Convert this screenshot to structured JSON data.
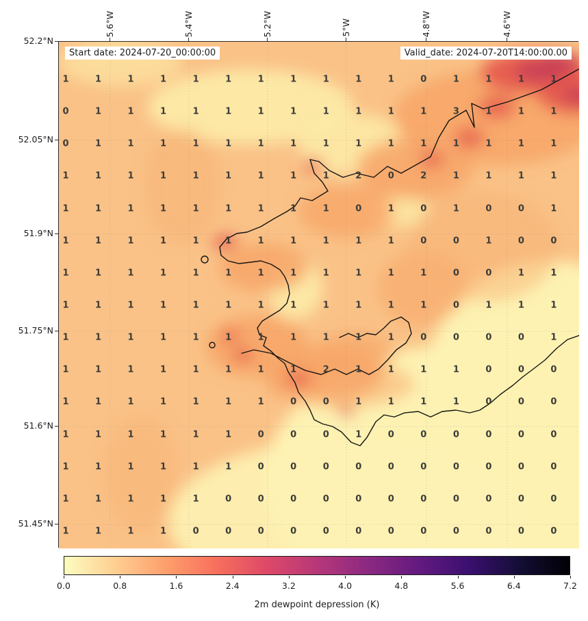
{
  "header": {
    "start_date": "Start date: 2024-07-20_00:00:00",
    "valid_date": "Valid_date: 2024-07-20T14:00:00.00"
  },
  "chart_data": {
    "type": "heatmap",
    "title": "",
    "x_tick_labels": [
      "5.6°W",
      "5.4°W",
      "5.2°W",
      "5°W",
      "4.8°W",
      "4.6°W"
    ],
    "y_tick_labels": [
      "52.2°N",
      "52.05°N",
      "51.9°N",
      "51.75°N",
      "51.6°N",
      "51.45°N"
    ],
    "x_range_deg_west": [
      5.73,
      4.41
    ],
    "y_range_deg_north": [
      51.41,
      52.2
    ],
    "grid_on": true,
    "colorbar": {
      "label": "2m dewpoint depression (K)",
      "tick_labels": [
        "0.0",
        "0.8",
        "1.6",
        "2.4",
        "3.2",
        "4.0",
        "4.8",
        "5.6",
        "6.4",
        "7.2"
      ],
      "range": [
        0.0,
        7.2
      ],
      "colormap": "magma_r",
      "orientation": "horizontal",
      "colors": [
        "#fcfdbf",
        "#fecf92",
        "#fe9f6d",
        "#f7705c",
        "#de4968",
        "#b73779",
        "#8c2981",
        "#641a80",
        "#3b0f70",
        "#140e36",
        "#000004"
      ]
    },
    "grid_values": [
      [
        1,
        1,
        1,
        1,
        1,
        1,
        1,
        1,
        1,
        1,
        1,
        0,
        1,
        1,
        1,
        1
      ],
      [
        0,
        1,
        1,
        1,
        1,
        1,
        1,
        1,
        1,
        1,
        1,
        1,
        3,
        1,
        1,
        1
      ],
      [
        0,
        1,
        1,
        1,
        1,
        1,
        1,
        1,
        1,
        1,
        1,
        1,
        1,
        1,
        1,
        1
      ],
      [
        1,
        1,
        1,
        1,
        1,
        1,
        1,
        1,
        1,
        2,
        0,
        2,
        1,
        1,
        1,
        1
      ],
      [
        1,
        1,
        1,
        1,
        1,
        1,
        1,
        1,
        1,
        0,
        1,
        0,
        1,
        0,
        0,
        1
      ],
      [
        1,
        1,
        1,
        1,
        1,
        1,
        1,
        1,
        1,
        1,
        1,
        0,
        0,
        1,
        0,
        0
      ],
      [
        1,
        1,
        1,
        1,
        1,
        1,
        1,
        1,
        1,
        1,
        1,
        1,
        0,
        0,
        1,
        1
      ],
      [
        1,
        1,
        1,
        1,
        1,
        1,
        1,
        1,
        1,
        1,
        1,
        1,
        0,
        1,
        1,
        1
      ],
      [
        1,
        1,
        1,
        1,
        1,
        1,
        1,
        1,
        1,
        1,
        1,
        0,
        0,
        0,
        0,
        1
      ],
      [
        1,
        1,
        1,
        1,
        1,
        1,
        1,
        1,
        2,
        1,
        1,
        1,
        1,
        0,
        0,
        0
      ],
      [
        1,
        1,
        1,
        1,
        1,
        1,
        1,
        0,
        0,
        1,
        1,
        1,
        1,
        0,
        0,
        0
      ],
      [
        1,
        1,
        1,
        1,
        1,
        1,
        0,
        0,
        0,
        1,
        0,
        0,
        0,
        0,
        0,
        0
      ],
      [
        1,
        1,
        1,
        1,
        1,
        1,
        0,
        0,
        0,
        0,
        0,
        0,
        0,
        0,
        0,
        0
      ],
      [
        1,
        1,
        1,
        1,
        1,
        0,
        0,
        0,
        0,
        0,
        0,
        0,
        0,
        0,
        0,
        0
      ],
      [
        1,
        1,
        1,
        1,
        0,
        0,
        0,
        0,
        0,
        0,
        0,
        0,
        0,
        0,
        0,
        0
      ]
    ],
    "map_fill_colors": {
      "low": "#fdf2b2",
      "base": "#fac287",
      "band": "#f7a668",
      "high": "#e65a4e",
      "very_high": "#c63d56"
    },
    "coastline_color": "#141414",
    "value_text_color": "#3c3c38"
  }
}
